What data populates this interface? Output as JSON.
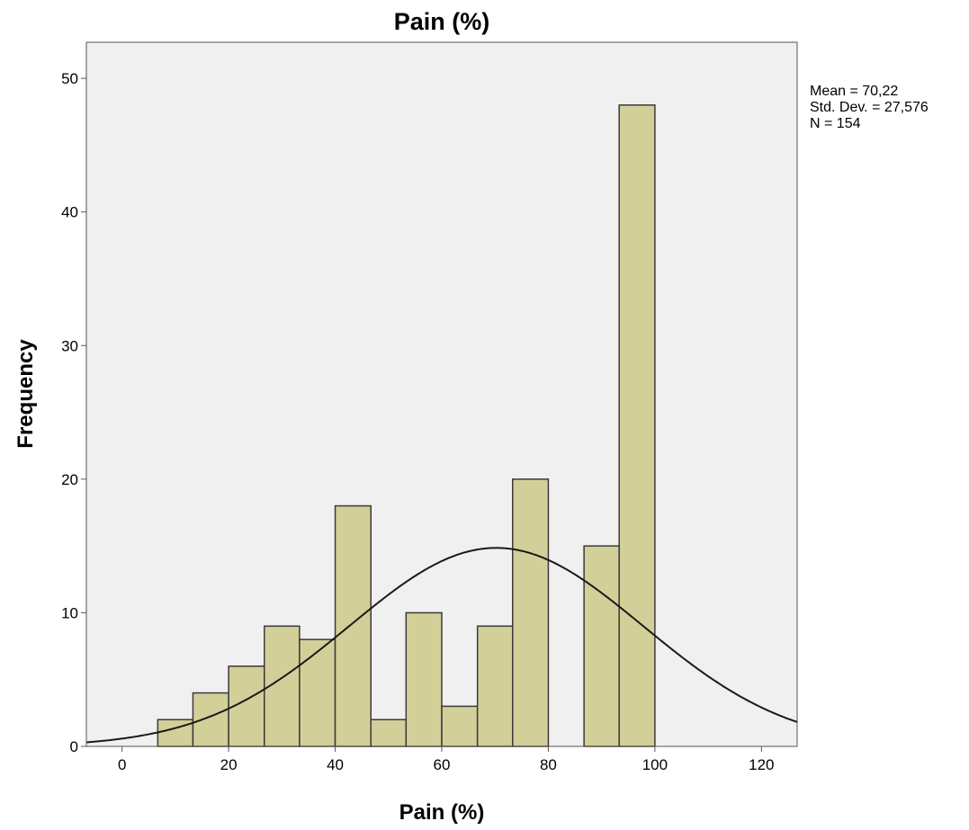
{
  "chart_data": {
    "type": "bar",
    "title": "Pain (%)",
    "xlabel": "Pain (%)",
    "ylabel": "Frequency",
    "xlim": [
      -6.7,
      126.7
    ],
    "ylim": [
      0,
      52.7
    ],
    "x_ticks": [
      0,
      20,
      40,
      60,
      80,
      100,
      120
    ],
    "y_ticks": [
      0,
      10,
      20,
      30,
      40,
      50
    ],
    "bins": [
      {
        "start": 6.7,
        "end": 13.3,
        "value": 2
      },
      {
        "start": 13.3,
        "end": 20.0,
        "value": 4
      },
      {
        "start": 20.0,
        "end": 26.7,
        "value": 6
      },
      {
        "start": 26.7,
        "end": 33.3,
        "value": 9
      },
      {
        "start": 33.3,
        "end": 40.0,
        "value": 8
      },
      {
        "start": 40.0,
        "end": 46.7,
        "value": 18
      },
      {
        "start": 46.7,
        "end": 53.3,
        "value": 2
      },
      {
        "start": 53.3,
        "end": 60.0,
        "value": 10
      },
      {
        "start": 60.0,
        "end": 66.7,
        "value": 3
      },
      {
        "start": 66.7,
        "end": 73.3,
        "value": 9
      },
      {
        "start": 73.3,
        "end": 80.0,
        "value": 20
      },
      {
        "start": 80.0,
        "end": 86.7,
        "value": 0
      },
      {
        "start": 86.7,
        "end": 93.3,
        "value": 15
      },
      {
        "start": 93.3,
        "end": 100.0,
        "value": 48
      }
    ],
    "normal_curve": {
      "mean": 70.22,
      "std_dev": 27.576,
      "n": 154,
      "bin_width": 6.667
    },
    "stats_lines": [
      "Mean = 70,22",
      "Std. Dev. = 27,576",
      "N = 154"
    ],
    "grid": false,
    "colors": {
      "bar_fill": "#d3cf99",
      "bar_stroke": "#3a3a3a",
      "plot_bg": "#f0f0f0",
      "curve": "#1a1a1a"
    }
  }
}
